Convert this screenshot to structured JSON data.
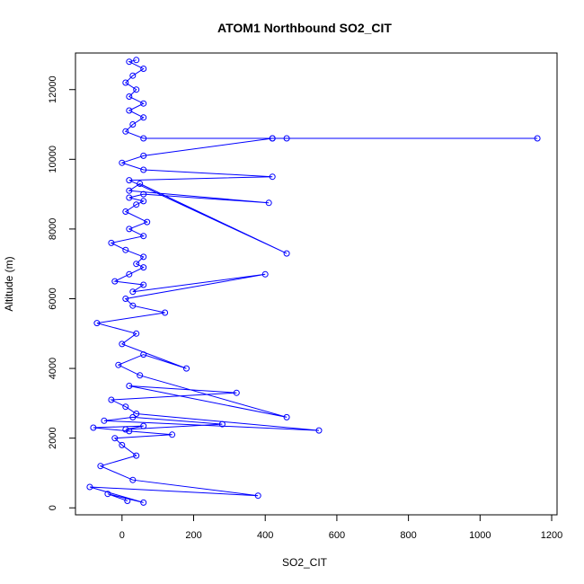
{
  "chart_data": {
    "type": "line",
    "title": "ATOM1 Northbound SO2_CIT",
    "xlabel": "SO2_CIT",
    "ylabel": "Altitude (m)",
    "xlim": [
      -130,
      1215
    ],
    "ylim": [
      -200,
      13050
    ],
    "xticks": [
      0,
      200,
      400,
      600,
      800,
      1000,
      1200
    ],
    "yticks": [
      0,
      2000,
      4000,
      6000,
      8000,
      10000,
      12000
    ],
    "series": [
      {
        "color": "#0000ff",
        "marker": "open-circle",
        "x": [
          15,
          -40,
          60,
          -90,
          380,
          30,
          -60,
          40,
          0,
          -20,
          140,
          20,
          -80,
          60,
          10,
          280,
          30,
          -50,
          550,
          40,
          10,
          -30,
          320,
          20,
          460,
          50,
          -10,
          60,
          180,
          0,
          40,
          -70,
          120,
          30,
          10,
          400,
          30,
          60,
          -20,
          20,
          60,
          40,
          60,
          10,
          -30,
          60,
          20,
          70,
          10,
          40,
          60,
          20,
          60,
          410,
          20,
          50,
          460,
          20,
          420,
          60,
          0,
          60,
          420,
          1160,
          420,
          460,
          60,
          10,
          30,
          60,
          20,
          60,
          20,
          40,
          10,
          30,
          60,
          20,
          40
        ],
        "y": [
          200,
          400,
          150,
          600,
          350,
          800,
          1200,
          1500,
          1800,
          2000,
          2100,
          2200,
          2300,
          2350,
          2250,
          2400,
          2600,
          2500,
          2220,
          2700,
          2900,
          3100,
          3300,
          3500,
          2600,
          3800,
          4100,
          4400,
          4000,
          4700,
          5000,
          5300,
          5600,
          5800,
          6000,
          6700,
          6200,
          6400,
          6500,
          6700,
          6900,
          7000,
          7200,
          7400,
          7600,
          7800,
          8000,
          8200,
          8500,
          8700,
          8800,
          8900,
          9000,
          8750,
          9100,
          9300,
          7300,
          9400,
          9500,
          9700,
          9900,
          10100,
          10600,
          10600,
          10600,
          10600,
          10600,
          10800,
          11000,
          11200,
          11400,
          11600,
          11800,
          12000,
          12200,
          12400,
          12600,
          12800,
          12850
        ]
      }
    ]
  }
}
